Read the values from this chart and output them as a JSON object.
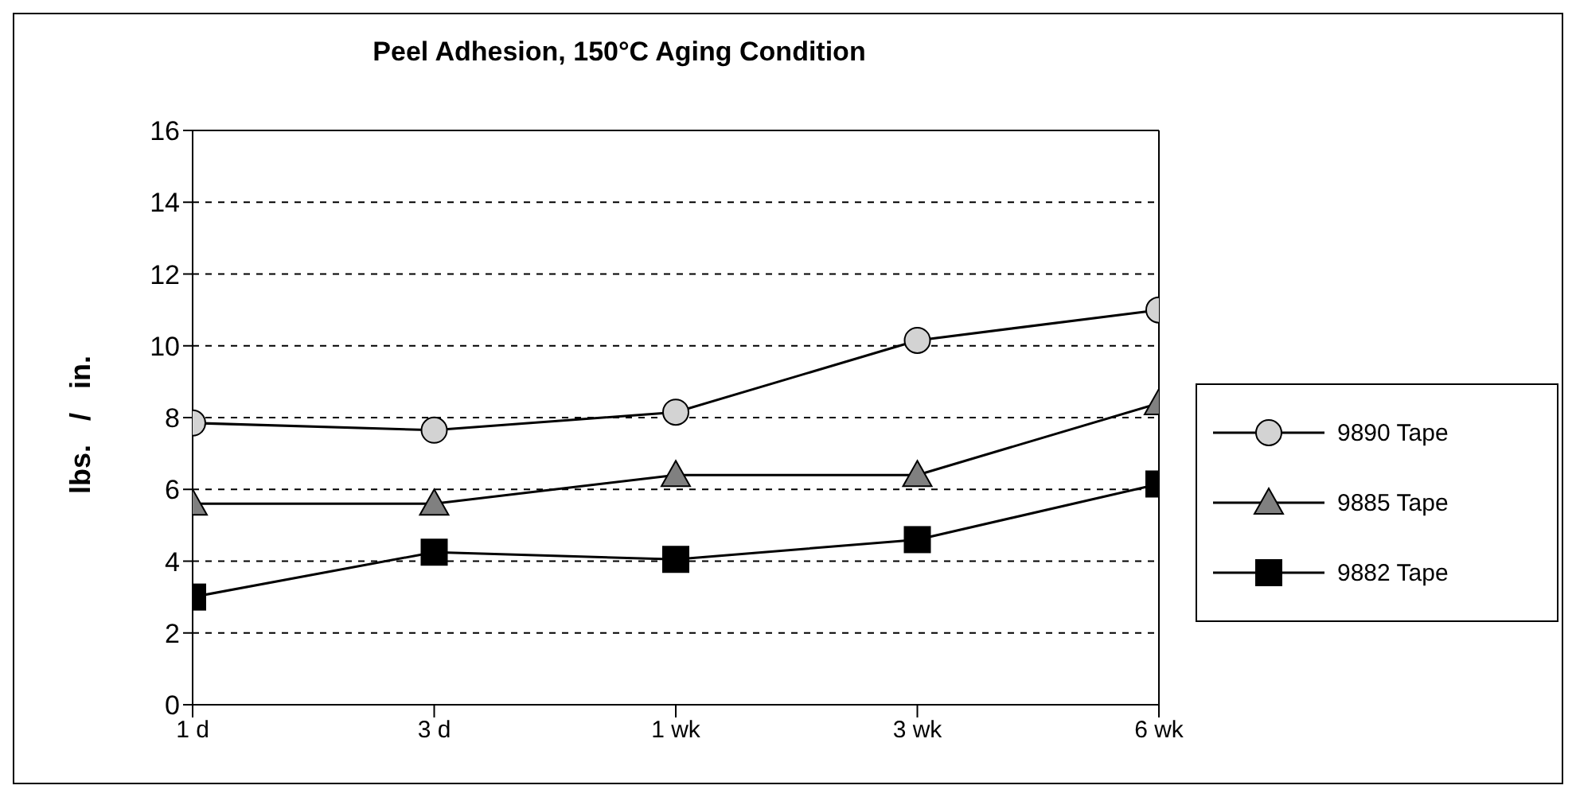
{
  "chart_data": {
    "type": "line",
    "title": "Peel Adhesion, 150°C Aging Condition",
    "ylabel": "lbs.   /   in.",
    "categories": [
      "1 d",
      "3 d",
      "1 wk",
      "3 wk",
      "6 wk"
    ],
    "series": [
      {
        "name": "9890 Tape",
        "color": "#d3d3d3",
        "marker": "circle",
        "values": [
          7.85,
          7.65,
          8.15,
          10.15,
          11.0
        ]
      },
      {
        "name": "9885 Tape",
        "color": "#808080",
        "marker": "triangle",
        "values": [
          5.6,
          5.6,
          6.4,
          6.4,
          8.4
        ]
      },
      {
        "name": "9882 Tape",
        "color": "#000000",
        "marker": "square",
        "values": [
          3.0,
          4.25,
          4.05,
          4.6,
          6.15
        ]
      }
    ],
    "ylim": [
      0,
      16
    ],
    "yticks": [
      0,
      2,
      4,
      6,
      8,
      10,
      12,
      14,
      16
    ],
    "grid": "y",
    "legend": "right",
    "line_style": "solid"
  }
}
